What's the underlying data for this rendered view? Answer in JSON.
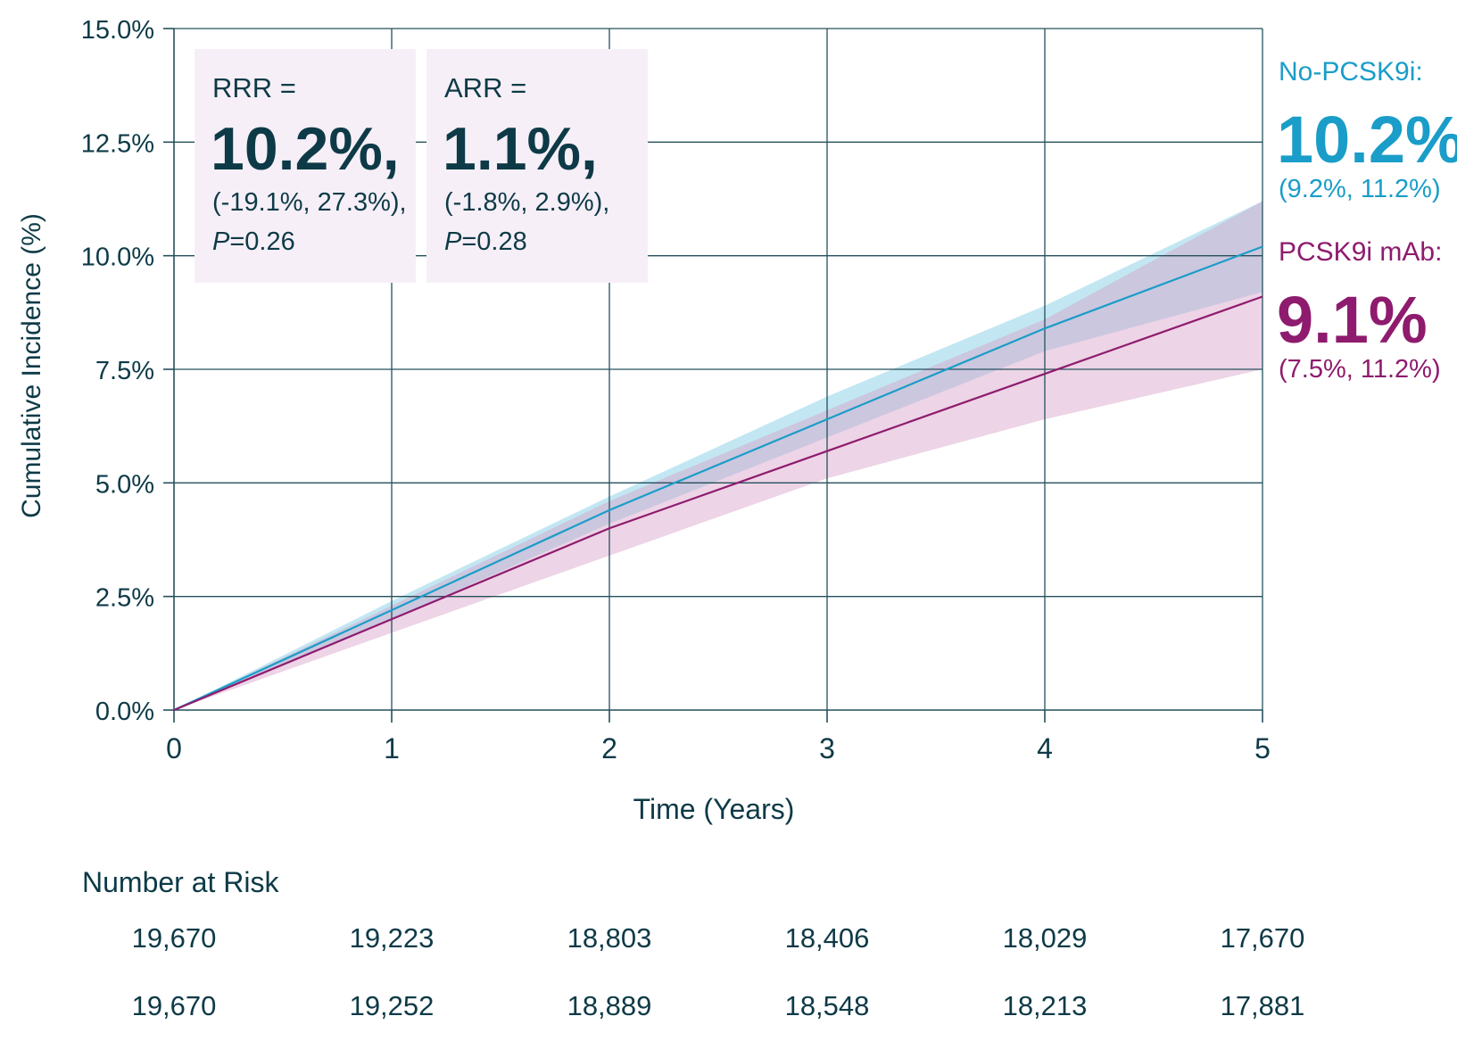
{
  "chart_data": {
    "type": "line",
    "xlabel": "Time (Years)",
    "ylabel": "Cumulative Incidence (%)",
    "xlim": [
      0,
      5
    ],
    "ylim": [
      0,
      15
    ],
    "x_ticks": [
      "0",
      "1",
      "2",
      "3",
      "4",
      "5"
    ],
    "y_ticks": [
      "0.0%",
      "2.5%",
      "5.0%",
      "7.5%",
      "10.0%",
      "12.5%",
      "15.0%"
    ],
    "grid": true,
    "series": [
      {
        "name": "No-PCSK9i",
        "color": "#1a9dc8",
        "band_color": "#8fd4e8",
        "x": [
          0,
          1,
          2,
          3,
          4,
          5
        ],
        "y": [
          0,
          2.2,
          4.4,
          6.4,
          8.4,
          10.2
        ],
        "lower": [
          0,
          2.0,
          4.1,
          6.0,
          7.9,
          9.2
        ],
        "upper": [
          0,
          2.4,
          4.7,
          6.9,
          8.9,
          11.2
        ]
      },
      {
        "name": "PCSK9i mAb",
        "color": "#8e1b6e",
        "band_color": "#d79fc8",
        "x": [
          0,
          1,
          2,
          3,
          4,
          5
        ],
        "y": [
          0,
          2.0,
          4.0,
          5.7,
          7.4,
          9.1
        ],
        "lower": [
          0,
          1.7,
          3.4,
          5.1,
          6.4,
          7.5
        ],
        "upper": [
          0,
          2.3,
          4.6,
          6.6,
          8.6,
          11.2
        ]
      }
    ],
    "stat_boxes": [
      {
        "label": "RRR =",
        "value": "10.2%,",
        "ci": "(-19.1%, 27.3%),",
        "p_prefix": "P",
        "p_value": "=0.26"
      },
      {
        "label": "ARR =",
        "value": "1.1%,",
        "ci": "(-1.8%, 2.9%),",
        "p_prefix": "P",
        "p_value": "=0.28"
      }
    ],
    "right_labels": [
      {
        "name": "No-PCSK9i:",
        "value": "10.2%",
        "ci": "(9.2%, 11.2%)",
        "color": "#1a9dc8"
      },
      {
        "name": "PCSK9i mAb:",
        "value": "9.1%",
        "ci": "(7.5%, 11.2%)",
        "color": "#8e1b6e"
      }
    ],
    "risk_table": {
      "title": "Number at Risk",
      "rows": [
        [
          "19,670",
          "19,223",
          "18,803",
          "18,406",
          "18,029",
          "17,670"
        ],
        [
          "19,670",
          "19,252",
          "18,889",
          "18,548",
          "18,213",
          "17,881"
        ]
      ]
    },
    "colors": {
      "text": "#0e3a47",
      "grid": "#24505c",
      "box_fill": "#f6eff7"
    }
  }
}
